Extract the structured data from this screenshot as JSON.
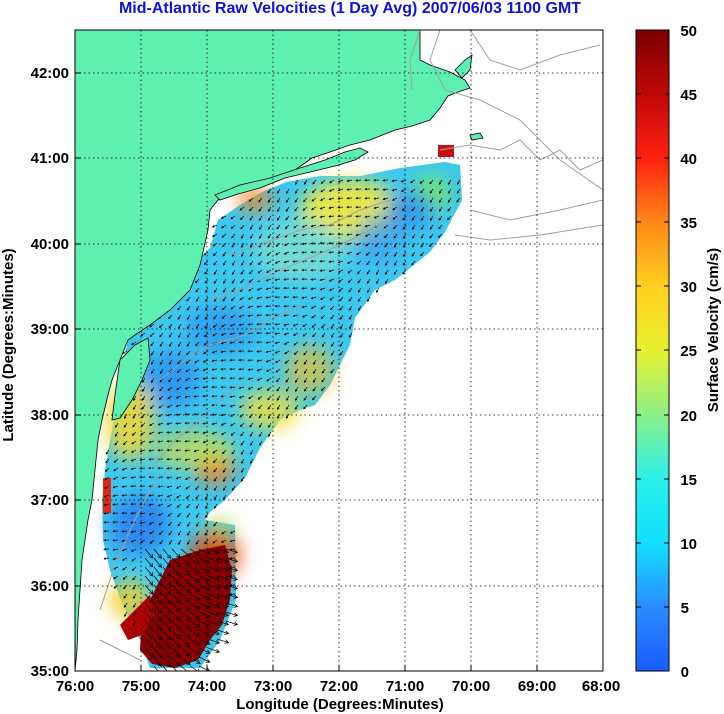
{
  "title": "Mid-Atlantic Raw Velocities (1 Day Avg) 2007/06/03 1100 GMT",
  "xlabel": "Longitude (Degrees:Minutes)",
  "ylabel": "Latitude (Degrees:Minutes)",
  "x_ticks": [
    "76:00",
    "75:00",
    "74:00",
    "73:00",
    "72:00",
    "71:00",
    "70:00",
    "69:00",
    "68:00"
  ],
  "y_ticks": [
    "42:00",
    "41:00",
    "40:00",
    "39:00",
    "38:00",
    "37:00",
    "36:00",
    "35:00"
  ],
  "colorbar": {
    "label": "Surface Velocity (cm/s)",
    "ticks": [
      "50",
      "45",
      "40",
      "35",
      "30",
      "25",
      "20",
      "15",
      "10",
      "5",
      "0"
    ],
    "range": [
      0,
      50
    ]
  },
  "colors": {
    "land": "#5ef0b0",
    "ocean": "#ffffff",
    "title": "#1010d8",
    "bathymetry": "#a0a0a0",
    "grid": "#000000"
  },
  "map_extent": {
    "lon": [
      -76,
      -68
    ],
    "lat": [
      35,
      42.5
    ]
  }
}
